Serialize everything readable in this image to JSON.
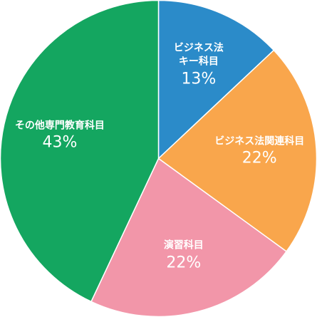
{
  "chart_data": {
    "type": "pie",
    "categories": [
      "ビジネス法キー科目",
      "ビジネス法関連科目",
      "演習科目",
      "その他専門教育科目"
    ],
    "values": [
      13,
      22,
      22,
      43
    ],
    "value_labels": [
      "13%",
      "22%",
      "22%",
      "43%"
    ],
    "colors": [
      "#2b8bc9",
      "#f9a64c",
      "#f296a9",
      "#14a660"
    ]
  }
}
